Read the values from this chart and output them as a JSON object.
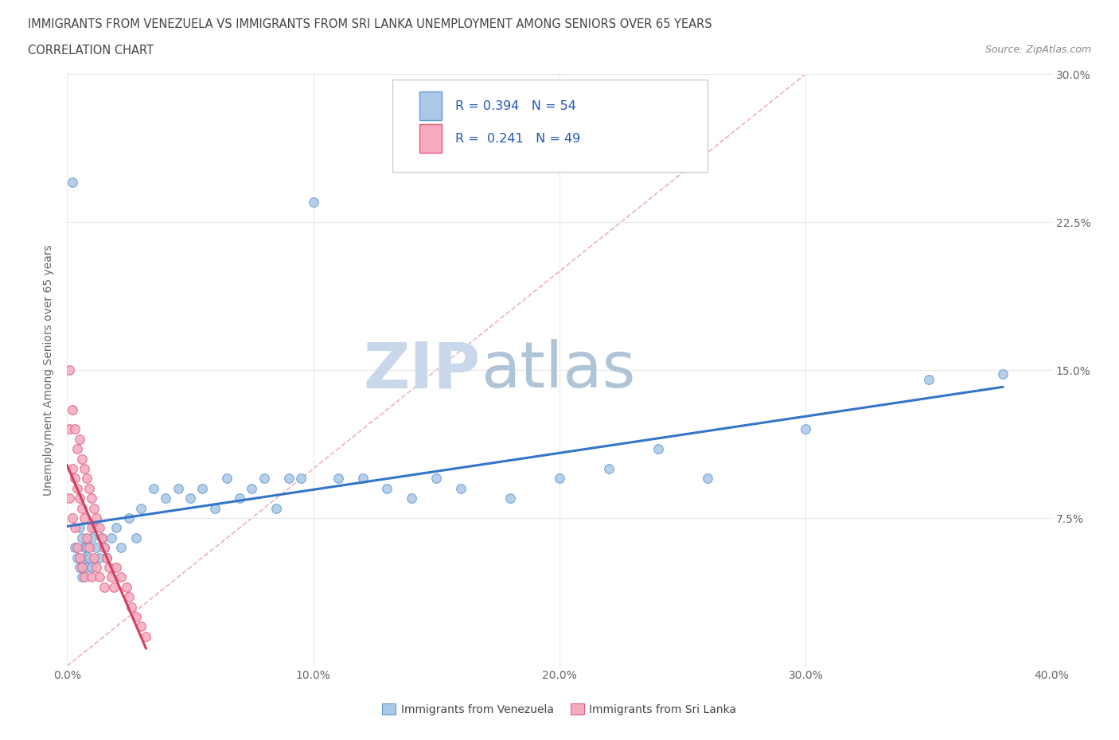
{
  "title_line1": "IMMIGRANTS FROM VENEZUELA VS IMMIGRANTS FROM SRI LANKA UNEMPLOYMENT AMONG SENIORS OVER 65 YEARS",
  "title_line2": "CORRELATION CHART",
  "source_text": "Source: ZipAtlas.com",
  "ylabel": "Unemployment Among Seniors over 65 years",
  "xlim": [
    0.0,
    0.4
  ],
  "ylim": [
    0.0,
    0.3
  ],
  "xticks": [
    0.0,
    0.1,
    0.2,
    0.3,
    0.4
  ],
  "yticks": [
    0.0,
    0.075,
    0.15,
    0.225,
    0.3
  ],
  "xticklabels": [
    "0.0%",
    "10.0%",
    "20.0%",
    "30.0%",
    "40.0%"
  ],
  "yticklabels_right": [
    "",
    "7.5%",
    "15.0%",
    "22.5%",
    "30.0%"
  ],
  "venezuela_R": 0.394,
  "venezuela_N": 54,
  "srilanka_R": 0.241,
  "srilanka_N": 49,
  "venezuela_color": "#aac8e8",
  "venezuela_edge": "#6699cc",
  "srilanka_color": "#f5aabe",
  "srilanka_edge": "#e06080",
  "trend_venezuela_color": "#3375c8",
  "trend_srilanka_color": "#d04060",
  "ref_line_color": "#e8b0b8",
  "background_color": "#ffffff",
  "title_color": "#333333",
  "watermark_zip_color": "#c8d8e8",
  "watermark_atlas_color": "#b8c8d8",
  "legend_R_color": "#2255bb",
  "legend_text_color": "#222222",
  "venezuela_x": [
    0.002,
    0.003,
    0.004,
    0.005,
    0.005,
    0.006,
    0.006,
    0.007,
    0.007,
    0.008,
    0.008,
    0.009,
    0.01,
    0.01,
    0.011,
    0.012,
    0.013,
    0.014,
    0.015,
    0.016,
    0.018,
    0.02,
    0.022,
    0.025,
    0.028,
    0.03,
    0.035,
    0.04,
    0.045,
    0.05,
    0.055,
    0.06,
    0.065,
    0.07,
    0.075,
    0.08,
    0.085,
    0.09,
    0.095,
    0.1,
    0.11,
    0.12,
    0.13,
    0.14,
    0.15,
    0.16,
    0.18,
    0.2,
    0.22,
    0.24,
    0.26,
    0.3,
    0.35,
    0.38
  ],
  "venezuela_y": [
    0.245,
    0.06,
    0.055,
    0.07,
    0.05,
    0.065,
    0.045,
    0.06,
    0.055,
    0.05,
    0.06,
    0.055,
    0.065,
    0.05,
    0.07,
    0.06,
    0.055,
    0.065,
    0.06,
    0.055,
    0.065,
    0.07,
    0.06,
    0.075,
    0.065,
    0.08,
    0.09,
    0.085,
    0.09,
    0.085,
    0.09,
    0.08,
    0.095,
    0.085,
    0.09,
    0.095,
    0.08,
    0.095,
    0.095,
    0.235,
    0.095,
    0.095,
    0.09,
    0.085,
    0.095,
    0.09,
    0.085,
    0.095,
    0.1,
    0.11,
    0.095,
    0.12,
    0.145,
    0.148
  ],
  "srilanka_x": [
    0.001,
    0.001,
    0.001,
    0.002,
    0.002,
    0.002,
    0.003,
    0.003,
    0.003,
    0.004,
    0.004,
    0.004,
    0.005,
    0.005,
    0.005,
    0.006,
    0.006,
    0.006,
    0.007,
    0.007,
    0.007,
    0.008,
    0.008,
    0.009,
    0.009,
    0.01,
    0.01,
    0.01,
    0.011,
    0.011,
    0.012,
    0.012,
    0.013,
    0.013,
    0.014,
    0.015,
    0.015,
    0.016,
    0.017,
    0.018,
    0.019,
    0.02,
    0.022,
    0.024,
    0.025,
    0.026,
    0.028,
    0.03,
    0.032
  ],
  "srilanka_y": [
    0.15,
    0.12,
    0.085,
    0.13,
    0.1,
    0.075,
    0.12,
    0.095,
    0.07,
    0.11,
    0.09,
    0.06,
    0.115,
    0.085,
    0.055,
    0.105,
    0.08,
    0.05,
    0.1,
    0.075,
    0.045,
    0.095,
    0.065,
    0.09,
    0.06,
    0.085,
    0.07,
    0.045,
    0.08,
    0.055,
    0.075,
    0.05,
    0.07,
    0.045,
    0.065,
    0.06,
    0.04,
    0.055,
    0.05,
    0.045,
    0.04,
    0.05,
    0.045,
    0.04,
    0.035,
    0.03,
    0.025,
    0.02,
    0.015
  ]
}
